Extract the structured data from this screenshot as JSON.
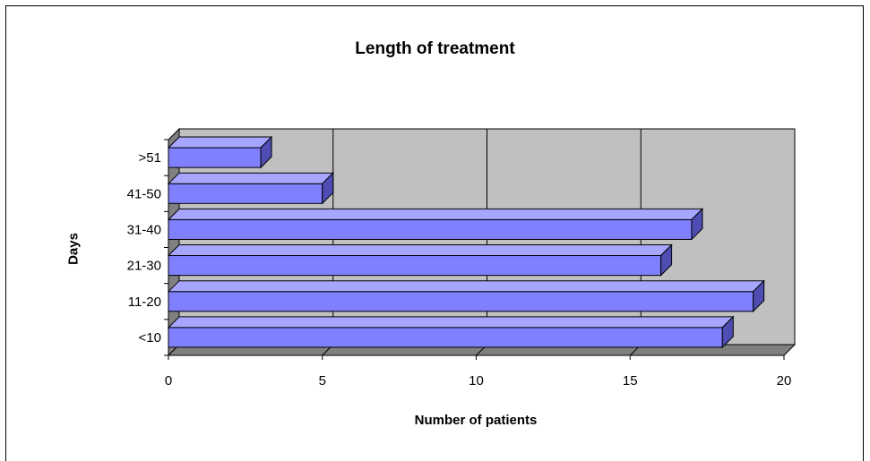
{
  "chart_data": {
    "type": "bar",
    "orientation": "horizontal",
    "title": "Length of treatment",
    "xlabel": "Number of patients",
    "ylabel": "Days",
    "categories": [
      "<10",
      "11-20",
      "21-30",
      "31-40",
      "41-50",
      ">51"
    ],
    "values": [
      18,
      19,
      16,
      17,
      5,
      3
    ],
    "xlim": [
      0,
      20
    ],
    "xticks": [
      0,
      5,
      10,
      15,
      20
    ],
    "grid": true,
    "legend": "none",
    "colors": {
      "bar_front": "#8080ff",
      "bar_top": "#a6a6ff",
      "bar_side": "#4d4db3",
      "wall": "#c0c0c0",
      "floor": "#808080"
    }
  }
}
